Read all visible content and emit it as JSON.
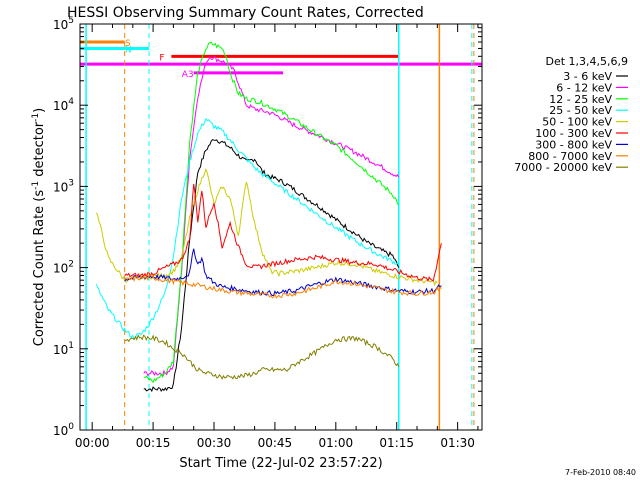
{
  "chart_data": {
    "type": "line",
    "title": "HESSI Observing Summary Count Rates, Corrected",
    "xlabel": "Start Time (22-Jul-02 23:57:22)",
    "ylabel": "Corrected Count Rate (s⁻¹ detector⁻¹)",
    "ylabel_base": "Corrected Count Rate (s",
    "ylabel_mid": " detector",
    "ylabel_end": ")",
    "ylabel_exp": "-1",
    "y_scale": "log",
    "xlim": [
      -3,
      96
    ],
    "ylim": [
      1,
      100000
    ],
    "x_ticks": [
      0,
      15,
      30,
      45,
      60,
      75,
      90
    ],
    "x_tick_labels": [
      "00:00",
      "00:15",
      "00:30",
      "00:45",
      "01:00",
      "01:15",
      "01:30"
    ],
    "y_ticks": [
      1,
      10,
      100,
      1000,
      10000,
      100000
    ],
    "y_tick_base": "10",
    "y_tick_exps": [
      "0",
      "1",
      "2",
      "3",
      "4",
      "5"
    ],
    "legend_title": "Det 1,3,4,5,6,9",
    "legend_position": "right",
    "timestamp": "7-Feb-2010 08:40",
    "series": [
      {
        "name": "3 - 6 keV",
        "color": "#000000",
        "x": [
          12.7,
          15,
          18,
          20,
          22,
          24,
          26,
          28,
          30,
          32,
          34,
          36,
          38,
          40,
          42,
          44,
          46,
          48,
          50,
          52,
          54,
          56,
          58,
          60,
          62,
          64,
          66,
          68,
          70,
          72,
          74,
          75.5
        ],
        "y": [
          3.2,
          3.2,
          3.2,
          3.5,
          18,
          220,
          1500,
          2800,
          3900,
          3500,
          3000,
          2400,
          2000,
          2200,
          1500,
          1300,
          1200,
          1050,
          900,
          760,
          650,
          560,
          470,
          390,
          330,
          280,
          235,
          200,
          175,
          155,
          140,
          100
        ]
      },
      {
        "name": "6 - 12 keV",
        "color": "#ff00ff",
        "x": [
          12.7,
          15,
          18,
          20,
          22,
          24,
          26,
          28,
          29,
          30,
          32,
          34,
          35,
          38,
          40,
          42,
          44,
          46,
          50,
          55,
          60,
          65,
          70,
          75.5
        ],
        "y": [
          5,
          5,
          5,
          6,
          90,
          2200,
          13000,
          33000,
          40000,
          38000,
          35000,
          30000,
          26000,
          10000,
          9000,
          8500,
          8000,
          7200,
          5600,
          4400,
          3400,
          2600,
          1900,
          1300
        ]
      },
      {
        "name": "12 - 25 keV",
        "color": "#00ff00",
        "x": [
          12.7,
          15,
          18,
          20,
          22,
          24,
          26,
          28,
          29,
          30,
          32,
          33,
          34,
          36,
          38,
          40,
          42,
          44,
          46,
          50,
          55,
          60,
          65,
          70,
          74,
          75.5
        ],
        "y": [
          4.5,
          4,
          5,
          7,
          100,
          3500,
          25000,
          50000,
          57000,
          56000,
          50000,
          40000,
          25000,
          14000,
          12000,
          11500,
          10500,
          9500,
          8500,
          6500,
          4500,
          3200,
          2000,
          1200,
          800,
          600
        ]
      },
      {
        "name": "25 - 50 keV",
        "color": "#00ffff",
        "x": [
          1,
          4,
          8,
          10,
          12,
          14,
          16,
          18,
          20,
          22,
          24,
          26,
          28,
          30,
          32,
          34,
          36,
          38,
          40,
          42,
          44,
          46,
          50,
          55,
          60,
          65,
          70,
          74,
          75.5
        ],
        "y": [
          60,
          30,
          17,
          14,
          15,
          20,
          30,
          50,
          140,
          700,
          2000,
          4500,
          6800,
          5500,
          4800,
          3700,
          2800,
          2200,
          1700,
          1400,
          1200,
          1000,
          720,
          470,
          310,
          210,
          150,
          120,
          110
        ]
      },
      {
        "name": "50 - 100 keV",
        "color": "#cccc00",
        "x": [
          1,
          4,
          8,
          12,
          15,
          18,
          20,
          22,
          24,
          26,
          28,
          30,
          32,
          34,
          36,
          38,
          40,
          42,
          44,
          46,
          50,
          55,
          60,
          65,
          70,
          75,
          80,
          85
        ],
        "y": [
          500,
          130,
          70,
          75,
          78,
          80,
          90,
          130,
          400,
          900,
          1700,
          600,
          1000,
          700,
          250,
          1200,
          350,
          150,
          90,
          85,
          90,
          100,
          115,
          110,
          90,
          78,
          70,
          65
        ]
      },
      {
        "name": "100 - 300 keV",
        "color": "#ff0000",
        "x": [
          8,
          12,
          15,
          18,
          20,
          22,
          24,
          25,
          26,
          27,
          28,
          30,
          32,
          34,
          36,
          38,
          40,
          42,
          44,
          46,
          50,
          55,
          60,
          65,
          70,
          75,
          80,
          84,
          86
        ],
        "y": [
          80,
          80,
          85,
          100,
          110,
          125,
          220,
          1100,
          380,
          900,
          320,
          650,
          180,
          350,
          180,
          110,
          100,
          105,
          110,
          115,
          125,
          135,
          125,
          115,
          110,
          90,
          75,
          70,
          200
        ]
      },
      {
        "name": "300 - 800 keV",
        "color": "#0000cc",
        "x": [
          8,
          12,
          15,
          18,
          20,
          22,
          24,
          25,
          26,
          27,
          28,
          30,
          32,
          35,
          40,
          45,
          50,
          55,
          60,
          65,
          70,
          75,
          80,
          84,
          86
        ],
        "y": [
          72,
          76,
          78,
          75,
          72,
          75,
          85,
          170,
          110,
          130,
          80,
          65,
          58,
          55,
          50,
          48,
          52,
          62,
          72,
          65,
          58,
          52,
          50,
          52,
          60
        ]
      },
      {
        "name": "800 - 7000 keV",
        "color": "#ff8000",
        "x": [
          8,
          12,
          15,
          18,
          20,
          22,
          25,
          30,
          35,
          40,
          45,
          50,
          55,
          60,
          65,
          70,
          75,
          80,
          84,
          86
        ],
        "y": [
          70,
          75,
          75,
          70,
          68,
          65,
          62,
          55,
          50,
          47,
          45,
          48,
          56,
          68,
          63,
          56,
          50,
          48,
          50,
          55
        ]
      },
      {
        "name": "7000 - 20000 keV",
        "color": "#808000",
        "x": [
          8,
          12,
          15,
          18,
          20,
          22,
          24,
          26,
          28,
          30,
          32,
          35,
          38,
          40,
          42,
          45,
          48,
          50,
          55,
          60,
          65,
          70,
          74,
          75.5
        ],
        "y": [
          13,
          14,
          13.5,
          12,
          10,
          9,
          7,
          5.5,
          5,
          4.8,
          4.5,
          4.5,
          4.7,
          5,
          5.5,
          5.5,
          5.5,
          6.5,
          9,
          13,
          13.5,
          10.5,
          7.5,
          6
        ]
      }
    ],
    "attenuator_bars": [
      {
        "label": "S",
        "color": "#ff8000",
        "x0": -3,
        "x1": 8,
        "y": 60000
      },
      {
        "label": "N",
        "color": "#00ffff",
        "x0": -3,
        "x1": 14,
        "y": 50000
      },
      {
        "label": "F",
        "color": "#ff0000",
        "x0": 19.5,
        "x1": 75.5,
        "y": 40000
      },
      {
        "label": "",
        "color": "#ff00ff",
        "x0": -3,
        "x1": 96,
        "y": 32000
      },
      {
        "label": "A3",
        "color": "#ff00ff",
        "x0": 25,
        "x1": 47,
        "y": 25000
      }
    ]
  }
}
